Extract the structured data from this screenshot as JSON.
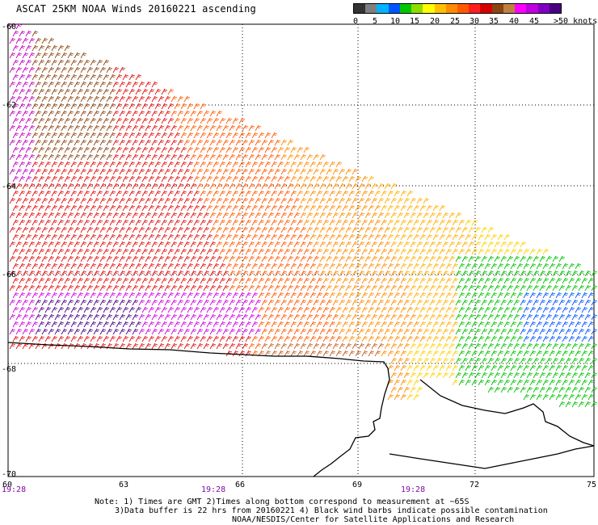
{
  "title": "ASCAT 25KM NOAA Winds 20160221 ascending",
  "legend": {
    "colors": [
      "#333333",
      "#808080",
      "#00b4ff",
      "#0055ff",
      "#00c800",
      "#8fdc00",
      "#ffff00",
      "#ffc000",
      "#ff8c00",
      "#ff5a00",
      "#ff1e1e",
      "#d60000",
      "#8b4513",
      "#c08040",
      "#ff00ff",
      "#c000e0",
      "#8000c0",
      "#4b0082"
    ],
    "ticks": [
      "0",
      "5",
      "10",
      "15",
      "20",
      "25",
      "30",
      "35",
      "40",
      "45",
      ">50 knots"
    ]
  },
  "map": {
    "lat_labels": [
      "-60",
      "-62",
      "-64",
      "-66",
      "-68",
      "-70"
    ],
    "lon_labels": [
      "60",
      "63",
      "66",
      "69",
      "72",
      "75"
    ],
    "time_labels": [
      "19:28",
      "19:28",
      "19:28"
    ]
  },
  "notes": {
    "line1": "Note: 1) Times are GMT 2)Times along bottom correspond to measurement at ~65S",
    "line2": "3)Data buffer is 22 hrs from 20160221 4) Black wind barbs indicate possible contamination",
    "line3": "NOAA/NESDIS/Center for Satellite Applications and Research"
  }
}
